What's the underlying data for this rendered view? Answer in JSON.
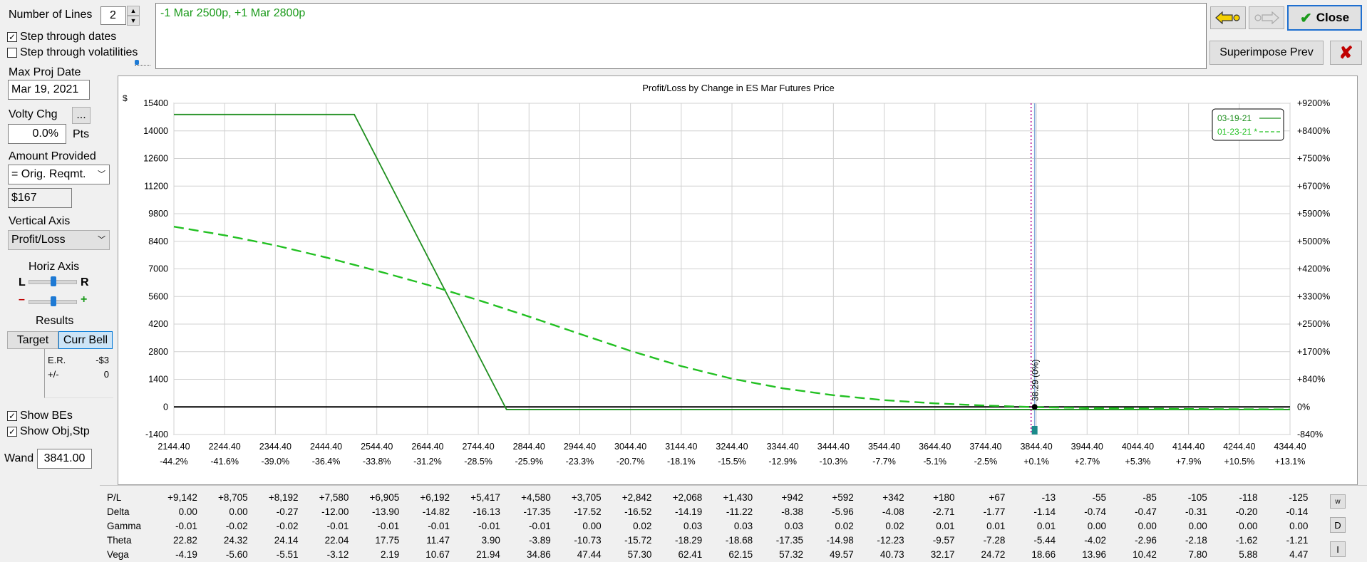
{
  "sidebar": {
    "num_lines_label": "Number of Lines",
    "num_lines_value": "2",
    "step_dates_label": "Step through dates",
    "step_dates_checked": true,
    "step_vols_label": "Step through volatilities",
    "step_vols_checked": false,
    "max_proj_date_label": "Max Proj Date",
    "max_proj_date_value": "Mar 19, 2021",
    "volty_chg_label": "Volty Chg",
    "volty_more_label": "...",
    "volty_chg_value": "0.0%",
    "pts_label": "Pts",
    "amount_label": "Amount Provided",
    "amount_select": "= Orig. Reqmt.",
    "amount_value": "$167",
    "vertical_axis_label": "Vertical Axis",
    "vertical_axis_select": "Profit/Loss",
    "horiz_axis_label": "Horiz Axis",
    "l_label": "L",
    "r_label": "R",
    "minus_label": "–",
    "plus_label": "+",
    "results_label": "Results",
    "target_tab": "Target",
    "curr_bell_tab": "Curr Bell",
    "er_label": "E.R.",
    "er_value": "-$3",
    "pm_label": "+/-",
    "pm_value": "0",
    "show_bes_label": "Show BEs",
    "show_bes_checked": true,
    "show_obj_label": "Show Obj,Stp",
    "show_obj_checked": true,
    "wand_label": "Wand",
    "wand_value": "3841.00"
  },
  "header": {
    "position_text": "-1 Mar 2500p, +1 Mar 2800p",
    "close_label": "Close",
    "superimpose_label": "Superimpose Prev",
    "back_icon": "back-arrow-icon",
    "forward_icon": "forward-arrow-icon",
    "delete_icon": "delete-x-icon",
    "colors": {
      "accent_green": "#1a9a1a",
      "close_border": "#1e6fd0",
      "delete_red": "#c00000"
    }
  },
  "chart_data": {
    "type": "line",
    "title": "Profit/Loss by Change in ES Mar Futures Price",
    "ylabel": "$",
    "ylim": [
      -1400,
      15400
    ],
    "yticks": [
      15400,
      14000,
      12600,
      11200,
      9800,
      8400,
      7000,
      5600,
      4200,
      2800,
      1400,
      0,
      -1400
    ],
    "right_ticks": [
      "+9200%",
      "+8400%",
      "+7500%",
      "+6700%",
      "+5900%",
      "+5000%",
      "+4200%",
      "+3300%",
      "+2500%",
      "+1700%",
      "+840%",
      "0%",
      "-840%"
    ],
    "xlim": [
      2144.4,
      4344.4
    ],
    "x_ticks": [
      2144.4,
      2244.4,
      2344.4,
      2444.4,
      2544.4,
      2644.4,
      2744.4,
      2844.4,
      2944.4,
      3044.4,
      3144.4,
      3244.4,
      3344.4,
      3444.4,
      3544.4,
      3644.4,
      3744.4,
      3844.4,
      3944.4,
      4044.4,
      4144.4,
      4244.4,
      4344.4
    ],
    "x_tick_labels": [
      "2144.40",
      "2244.40",
      "2344.40",
      "2444.40",
      "2544.40",
      "2644.40",
      "2744.40",
      "2844.40",
      "2944.40",
      "3044.40",
      "3144.40",
      "3244.40",
      "3344.40",
      "3444.40",
      "3544.40",
      "3644.40",
      "3744.40",
      "3844.40",
      "3944.40",
      "4044.40",
      "4144.40",
      "4244.40",
      "4344.40"
    ],
    "x_pct_labels": [
      "-44.2%",
      "-41.6%",
      "-39.0%",
      "-36.4%",
      "-33.8%",
      "-31.2%",
      "-28.5%",
      "-25.9%",
      "-23.3%",
      "-20.7%",
      "-18.1%",
      "-15.5%",
      "-12.9%",
      "-10.3%",
      "-7.7%",
      "-5.1%",
      "-2.5%",
      "+0.1%",
      "+2.7%",
      "+5.3%",
      "+7.9%",
      "+10.5%",
      "+13.1%"
    ],
    "grid": true,
    "legend": "top-right",
    "series": [
      {
        "name": "03-19-21",
        "style": "solid",
        "color": "#1f8f1f",
        "x": [
          2144.4,
          2500,
          2800,
          4344.4
        ],
        "y": [
          14830,
          14830,
          -133,
          -133
        ]
      },
      {
        "name": "01-23-21 *",
        "style": "dashed",
        "color": "#22c022",
        "x": [
          2144.4,
          2244.4,
          2344.4,
          2444.4,
          2544.4,
          2644.4,
          2744.4,
          2844.4,
          2944.4,
          3044.4,
          3144.4,
          3244.4,
          3344.4,
          3444.4,
          3544.4,
          3644.4,
          3744.4,
          3844.4,
          3944.4,
          4044.4,
          4144.4,
          4244.4,
          4344.4
        ],
        "y": [
          9142,
          8705,
          8192,
          7580,
          6905,
          6192,
          5417,
          4580,
          3705,
          2842,
          2068,
          1430,
          942,
          592,
          342,
          180,
          67,
          -13,
          -55,
          -85,
          -105,
          -118,
          -125
        ]
      }
    ],
    "annotations": {
      "current_price": 3841.0,
      "current_label": "38.29 (0%)",
      "target_line_x": 3834
    }
  },
  "stats_table": {
    "row_labels": [
      "P/L",
      "Delta",
      "Gamma",
      "Theta",
      "Vega"
    ],
    "rows": [
      [
        "+9,142",
        "+8,705",
        "+8,192",
        "+7,580",
        "+6,905",
        "+6,192",
        "+5,417",
        "+4,580",
        "+3,705",
        "+2,842",
        "+2,068",
        "+1,430",
        "+942",
        "+592",
        "+342",
        "+180",
        "+67",
        "-13",
        "-55",
        "-85",
        "-105",
        "-118",
        "-125"
      ],
      [
        "0.00",
        "0.00",
        "-0.27",
        "-12.00",
        "-13.90",
        "-14.82",
        "-16.13",
        "-17.35",
        "-17.52",
        "-16.52",
        "-14.19",
        "-11.22",
        "-8.38",
        "-5.96",
        "-4.08",
        "-2.71",
        "-1.77",
        "-1.14",
        "-0.74",
        "-0.47",
        "-0.31",
        "-0.20",
        "-0.14"
      ],
      [
        "-0.01",
        "-0.02",
        "-0.02",
        "-0.01",
        "-0.01",
        "-0.01",
        "-0.01",
        "-0.01",
        "0.00",
        "0.02",
        "0.03",
        "0.03",
        "0.03",
        "0.02",
        "0.02",
        "0.01",
        "0.01",
        "0.01",
        "0.00",
        "0.00",
        "0.00",
        "0.00",
        "0.00"
      ],
      [
        "22.82",
        "24.32",
        "24.14",
        "22.04",
        "17.75",
        "11.47",
        "3.90",
        "-3.89",
        "-10.73",
        "-15.72",
        "-18.29",
        "-18.68",
        "-17.35",
        "-14.98",
        "-12.23",
        "-9.57",
        "-7.28",
        "-5.44",
        "-4.02",
        "-2.96",
        "-2.18",
        "-1.62",
        "-1.21"
      ],
      [
        "-4.19",
        "-5.60",
        "-5.51",
        "-3.12",
        "2.19",
        "10.67",
        "21.94",
        "34.86",
        "47.44",
        "57.30",
        "62.41",
        "62.15",
        "57.32",
        "49.57",
        "40.73",
        "32.17",
        "24.72",
        "18.66",
        "13.96",
        "10.42",
        "7.80",
        "5.88",
        "4.47"
      ]
    ],
    "side_buttons": [
      "w",
      "D",
      "I"
    ]
  }
}
